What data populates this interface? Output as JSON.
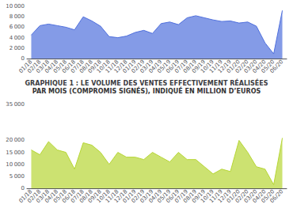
{
  "chart_data": [
    {
      "type": "area",
      "title": "GRAPHIQUE 1 : LE VOLUME DES VENTES EFFECTIVEMENT RÉALISÉES",
      "subtitle": "PAR MOIS (COMPROMIS SIGNÉS), INDIQUÉ EN MILLION D’EUROS",
      "categories": [
        "01/18",
        "02/18",
        "03/18",
        "04/18",
        "05/18",
        "06/18",
        "07/18",
        "08/18",
        "09/18",
        "10/18",
        "11/18",
        "12/18",
        "01/19",
        "02/19",
        "03/19",
        "04/19",
        "05/19",
        "06/19",
        "07/19",
        "08/19",
        "09/19",
        "10/19",
        "11/19",
        "12/19",
        "01/20",
        "02/20",
        "03/20",
        "04/20",
        "05/20",
        "06/20"
      ],
      "values": [
        4500,
        6300,
        6600,
        6300,
        6000,
        5500,
        8000,
        7200,
        6200,
        4200,
        4000,
        4300,
        5000,
        5400,
        4800,
        6700,
        7000,
        6500,
        7800,
        8200,
        7800,
        7400,
        7100,
        7200,
        6800,
        7000,
        6200,
        3000,
        900,
        9200
      ],
      "ylim": [
        0,
        10000
      ],
      "yticks": [
        0,
        {
          "value": 2000,
          "label": "2 000"
        },
        {
          "value": 4000,
          "label": "4 000"
        },
        {
          "value": 6000,
          "label": "6 000"
        },
        {
          "value": 8000,
          "label": "8 000"
        },
        {
          "value": 10000,
          "label": "10 000"
        }
      ],
      "grid": false
    },
    {
      "type": "area",
      "categories": [
        "01/18",
        "02/18",
        "03/18",
        "04/18",
        "05/18",
        "06/18",
        "07/18",
        "08/18",
        "09/18",
        "10/18",
        "11/18",
        "12/18",
        "01/19",
        "02/19",
        "03/19",
        "04/19",
        "05/19",
        "06/19",
        "07/19",
        "08/19",
        "09/19",
        "10/19",
        "11/19",
        "12/19",
        "01/20",
        "02/20",
        "03/20",
        "04/20",
        "05/20",
        "06/20"
      ],
      "values": [
        16000,
        14000,
        19500,
        16000,
        15000,
        8000,
        19000,
        18000,
        15000,
        10000,
        15000,
        13000,
        13000,
        12000,
        15000,
        13000,
        11000,
        15000,
        12000,
        12000,
        9000,
        6000,
        8000,
        7000,
        20000,
        15000,
        9000,
        8000,
        1500,
        21000
      ],
      "ylim": [
        0,
        35000
      ],
      "yticks": [
        0,
        {
          "value": 5000,
          "label": "5 000"
        },
        {
          "value": 10000,
          "label": "10 000"
        },
        {
          "value": 15000,
          "label": "15 000"
        },
        {
          "value": 20000,
          "label": "20 000"
        },
        {
          "value": 35000,
          "label": "35 000"
        }
      ],
      "grid": false
    }
  ]
}
